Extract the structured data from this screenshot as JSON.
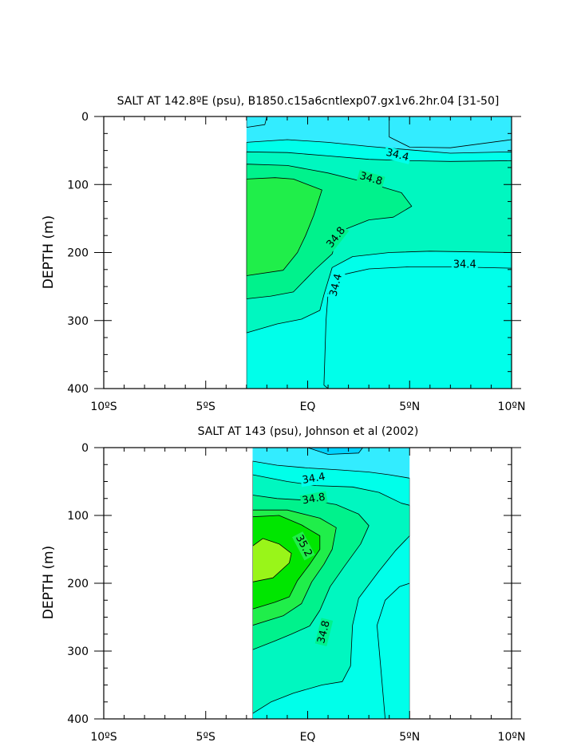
{
  "chart_data": [
    {
      "type": "heatmap",
      "title": "SALT AT 142.8ºE (psu), B1850.c15a6cntlexp07.gx1v6.2hr.04 [31-50]",
      "xlabel": "",
      "ylabel": "DEPTH (m)",
      "xlim": [
        -10,
        10
      ],
      "ylim": [
        0,
        400
      ],
      "x_ticks": [
        -10,
        -5,
        0,
        5,
        10
      ],
      "x_tick_labels": [
        "10ºS",
        "5ºS",
        "EQ",
        "5ºN",
        "10ºN"
      ],
      "y_ticks": [
        0,
        100,
        200,
        300,
        400
      ],
      "y_tick_labels": [
        "0",
        "100",
        "200",
        "300",
        "400"
      ],
      "data_extent_lat": [
        -3,
        10
      ],
      "background_salinity": 34.2,
      "contour_levels": [
        34.2,
        34.4,
        34.6,
        34.8,
        35.0
      ],
      "contour_labels": [
        {
          "text": "34.4",
          "lat": 4.4,
          "depth": 57,
          "angle": 14
        },
        {
          "text": "34.8",
          "lat": 3.1,
          "depth": 92,
          "angle": 16
        },
        {
          "text": "34.8",
          "lat": 1.4,
          "depth": 178,
          "angle": -52
        },
        {
          "text": "34.4",
          "lat": 1.4,
          "depth": 248,
          "angle": -76
        },
        {
          "text": "34.4",
          "lat": 7.7,
          "depth": 218,
          "angle": 0
        }
      ],
      "regions": [
        {
          "level": 34.4,
          "polygon": [
            [
              -3,
              38
            ],
            [
              -1,
              34
            ],
            [
              1,
              38
            ],
            [
              3,
              44
            ],
            [
              5,
              49
            ],
            [
              7,
              54
            ],
            [
              10,
              52
            ],
            [
              10,
              400
            ],
            [
              1,
              400
            ],
            [
              0.8,
              395
            ],
            [
              0.9,
              300
            ],
            [
              1,
              260
            ],
            [
              1.8,
              232
            ],
            [
              3,
              224
            ],
            [
              5,
              221
            ],
            [
              7,
              221
            ],
            [
              10,
              223
            ],
            [
              10,
              400
            ],
            [
              -3,
              400
            ]
          ]
        },
        {
          "level": 34.6,
          "polygon": [
            [
              -3,
              52
            ],
            [
              -1,
              53
            ],
            [
              1,
              58
            ],
            [
              3,
              63
            ],
            [
              5,
              65
            ],
            [
              7,
              66
            ],
            [
              10,
              65
            ],
            [
              10,
              200
            ],
            [
              6,
              198
            ],
            [
              4,
              200
            ],
            [
              2.2,
              206
            ],
            [
              1.2,
              222
            ],
            [
              0.8,
              262
            ],
            [
              0.6,
              285
            ],
            [
              -0.3,
              298
            ],
            [
              -1.5,
              305
            ],
            [
              -3,
              318
            ]
          ]
        },
        {
          "level": 34.8,
          "polygon": [
            [
              -3,
              70
            ],
            [
              -1,
              72
            ],
            [
              1,
              83
            ],
            [
              3,
              98
            ],
            [
              4.6,
              112
            ],
            [
              5.1,
              132
            ],
            [
              4.2,
              148
            ],
            [
              3,
              152
            ],
            [
              1.9,
              165
            ],
            [
              1.4,
              182
            ],
            [
              1.2,
              202
            ],
            [
              0.4,
              224
            ],
            [
              -0.7,
              258
            ],
            [
              -1.8,
              264
            ],
            [
              -3,
              268
            ]
          ]
        },
        {
          "level": 35.0,
          "polygon": [
            [
              -3,
              92
            ],
            [
              -1.6,
              90
            ],
            [
              -0.7,
              92
            ],
            [
              0.7,
              108
            ],
            [
              0.3,
              145
            ],
            [
              -0.1,
              175
            ],
            [
              -0.5,
              200
            ],
            [
              -1.2,
              226
            ],
            [
              -3,
              234
            ]
          ]
        },
        {
          "level": 34.2,
          "polygon": [
            [
              4,
              0
            ],
            [
              10,
              0
            ],
            [
              10,
              34
            ],
            [
              7,
              46
            ],
            [
              5,
              45
            ],
            [
              4,
              30
            ]
          ]
        },
        {
          "level": 34.2,
          "polygon": [
            [
              -3,
              0
            ],
            [
              -2,
              0
            ],
            [
              -2.1,
              12
            ],
            [
              -3,
              16
            ]
          ]
        }
      ],
      "colors": {
        "34.0": "#00d2ff",
        "34.2": "#33ecff",
        "34.4": "#00ffea",
        "34.6": "#00f7c0",
        "34.8": "#00f28c",
        "35.0": "#20ee4a",
        "35.2": "#00e600",
        "35.4": "#99f519"
      }
    },
    {
      "type": "heatmap",
      "title": "SALT AT 143 (psu), Johnson et al (2002)",
      "xlabel": "",
      "ylabel": "DEPTH (m)",
      "xlim": [
        -10,
        10
      ],
      "ylim": [
        0,
        400
      ],
      "x_ticks": [
        -10,
        -5,
        0,
        5,
        10
      ],
      "x_tick_labels": [
        "10ºS",
        "5ºS",
        "EQ",
        "5ºN",
        "10ºN"
      ],
      "y_ticks": [
        0,
        100,
        200,
        300,
        400
      ],
      "y_tick_labels": [
        "0",
        "100",
        "200",
        "300",
        "400"
      ],
      "data_extent_lat": [
        -2.7,
        5
      ],
      "background_salinity": 34.2,
      "contour_levels": [
        34.0,
        34.2,
        34.4,
        34.6,
        34.8,
        35.0,
        35.2,
        35.4
      ],
      "contour_labels": [
        {
          "text": "34.4",
          "lat": 0.3,
          "depth": 46,
          "angle": -10
        },
        {
          "text": "34.8",
          "lat": 0.3,
          "depth": 76,
          "angle": -10
        },
        {
          "text": "35.2",
          "lat": -0.2,
          "depth": 145,
          "angle": 62
        },
        {
          "text": "34.8",
          "lat": 0.8,
          "depth": 272,
          "angle": -76
        }
      ],
      "regions": [
        {
          "level": 34.0,
          "polygon": [
            [
              0,
              0
            ],
            [
              2.7,
              0
            ],
            [
              2.5,
              8
            ],
            [
              1,
              10
            ]
          ]
        },
        {
          "level": 34.4,
          "polygon": [
            [
              -2.7,
              20
            ],
            [
              -1.5,
              26
            ],
            [
              0,
              30
            ],
            [
              1.6,
              33
            ],
            [
              3,
              36
            ],
            [
              4,
              40
            ],
            [
              5,
              45
            ],
            [
              5,
              400
            ],
            [
              3.8,
              400
            ],
            [
              3.6,
              330
            ],
            [
              3.4,
              262
            ],
            [
              3.8,
              225
            ],
            [
              4.5,
              205
            ],
            [
              5,
              200
            ],
            [
              5,
              400
            ],
            [
              -2.7,
              400
            ]
          ]
        },
        {
          "level": 34.6,
          "polygon": [
            [
              -2.7,
              40
            ],
            [
              -1,
              50
            ],
            [
              0.4,
              56
            ],
            [
              2.2,
              58
            ],
            [
              3.5,
              66
            ],
            [
              4.6,
              82
            ],
            [
              5,
              85
            ],
            [
              5,
              130
            ],
            [
              4.3,
              152
            ],
            [
              3.5,
              182
            ],
            [
              2.5,
              222
            ],
            [
              2.2,
              262
            ],
            [
              2.1,
              322
            ],
            [
              1.7,
              345
            ],
            [
              0.7,
              350
            ],
            [
              -0.7,
              362
            ],
            [
              -1.8,
              375
            ],
            [
              -2.7,
              392
            ]
          ]
        },
        {
          "level": 34.8,
          "polygon": [
            [
              -2.7,
              70
            ],
            [
              -1.5,
              75
            ],
            [
              0.2,
              78
            ],
            [
              1.4,
              84
            ],
            [
              2.5,
              98
            ],
            [
              3,
              115
            ],
            [
              2.6,
              142
            ],
            [
              1.8,
              175
            ],
            [
              1.1,
              205
            ],
            [
              0.6,
              240
            ],
            [
              0.1,
              263
            ],
            [
              -0.8,
              275
            ],
            [
              -1.6,
              285
            ],
            [
              -2.7,
              298
            ]
          ]
        },
        {
          "level": 35.0,
          "polygon": [
            [
              -2.7,
              92
            ],
            [
              -1,
              92
            ],
            [
              0.6,
              104
            ],
            [
              1.4,
              118
            ],
            [
              1.2,
              150
            ],
            [
              0.8,
              172
            ],
            [
              0.2,
              198
            ],
            [
              -0.3,
              230
            ],
            [
              -1.2,
              248
            ],
            [
              -2.7,
              262
            ]
          ]
        },
        {
          "level": 35.2,
          "polygon": [
            [
              -2.7,
              102
            ],
            [
              -1.4,
              100
            ],
            [
              -0.3,
              114
            ],
            [
              0.6,
              130
            ],
            [
              0.6,
              150
            ],
            [
              0.1,
              172
            ],
            [
              -0.5,
              196
            ],
            [
              -0.9,
              220
            ],
            [
              -1.6,
              228
            ],
            [
              -2.7,
              238
            ]
          ]
        },
        {
          "level": 35.4,
          "polygon": [
            [
              -2.7,
              145
            ],
            [
              -2.2,
              134
            ],
            [
              -1.4,
              142
            ],
            [
              -0.8,
              156
            ],
            [
              -0.9,
              170
            ],
            [
              -1.7,
              192
            ],
            [
              -2.7,
              198
            ]
          ]
        }
      ],
      "colors": {
        "34.0": "#00d2ff",
        "34.2": "#33ecff",
        "34.4": "#00ffea",
        "34.6": "#00f7c0",
        "34.8": "#00f28c",
        "35.0": "#20ee4a",
        "35.2": "#00e600",
        "35.4": "#99f519"
      }
    }
  ]
}
